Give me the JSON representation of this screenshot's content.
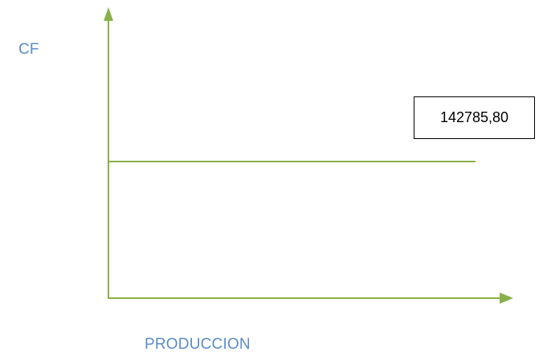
{
  "colors": {
    "axis": "#8ab04a",
    "axis_label": "#5b8cc7",
    "annotation_text": "#000000"
  },
  "chart_data": {
    "type": "line",
    "title": "",
    "xlabel": "PRODUCCION",
    "ylabel": "CF",
    "series": [
      {
        "values": [
          142785.8,
          142785.8
        ]
      }
    ],
    "annotations": [
      {
        "text": "142785,80"
      }
    ],
    "grid": false,
    "legend": "none"
  }
}
